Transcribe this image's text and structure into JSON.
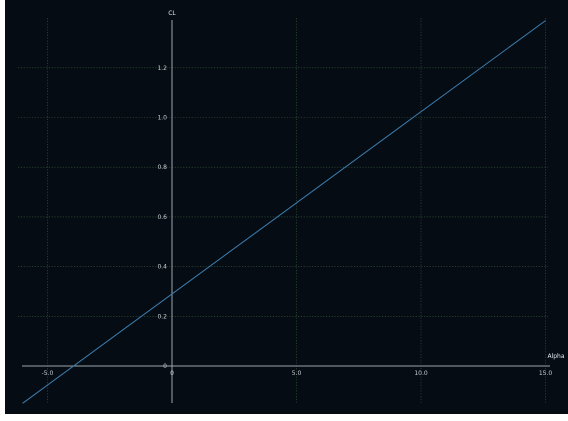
{
  "chart_data": {
    "type": "line",
    "xlabel": "Alpha",
    "ylabel": "CL",
    "xlim": [
      -6.0,
      15.0
    ],
    "ylim": [
      -0.15,
      1.4
    ],
    "x_ticks": [
      "-5.0",
      "0",
      "5.0",
      "10.0",
      "15.0"
    ],
    "y_ticks": [
      "0",
      "0.2",
      "0.4",
      "0.6",
      "0.8",
      "1.0",
      "1.2"
    ],
    "grid": true,
    "series": [
      {
        "x": [
          -6.0,
          15.0
        ],
        "y": [
          -0.15,
          1.39
        ],
        "color": "#3d7fb0"
      }
    ]
  },
  "colors": {
    "background": "#050c14",
    "grid": "#3a5a3a",
    "axis": "#9aa3ad",
    "line": "#3d7fb0"
  }
}
